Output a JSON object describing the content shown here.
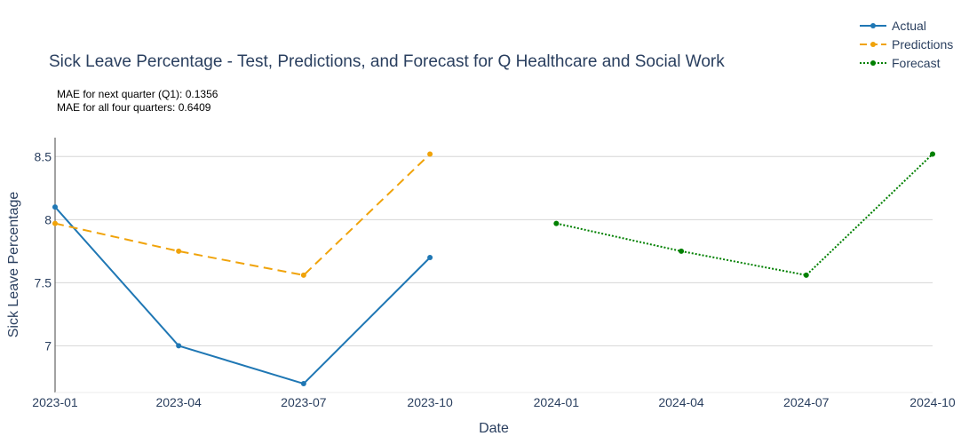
{
  "chart_data": {
    "type": "line",
    "title": "Sick Leave Percentage - Test, Predictions, and Forecast for Q Healthcare and Social Work",
    "annotations": [
      "MAE for next quarter (Q1): 0.1356",
      "MAE for all four quarters: 0.6409"
    ],
    "xlabel": "Date",
    "ylabel": "Sick Leave Percentage",
    "x_ticks": [
      "2023-01",
      "2023-04",
      "2023-07",
      "2023-10",
      "2024-01",
      "2024-04",
      "2024-07",
      "2024-10"
    ],
    "y_ticks": [
      7,
      7.5,
      8,
      8.5
    ],
    "y_tick_labels": [
      "7",
      "7.5",
      "8",
      "8.5"
    ],
    "xlim": [
      "2023-01-01",
      "2024-10-01"
    ],
    "ylim": [
      6.63,
      8.65
    ],
    "grid": true,
    "legend_position": "top-right",
    "series": [
      {
        "name": "Actual",
        "color": "#1f77b4",
        "dash": "solid",
        "x": [
          "2023-01-01",
          "2023-04-01",
          "2023-07-01",
          "2023-10-01"
        ],
        "y": [
          8.1,
          7.0,
          6.7,
          7.7
        ]
      },
      {
        "name": "Predictions",
        "color": "#f0a30a",
        "dash": "dash",
        "x": [
          "2023-01-01",
          "2023-04-01",
          "2023-07-01",
          "2023-10-01"
        ],
        "y": [
          7.97,
          7.75,
          7.56,
          8.52
        ]
      },
      {
        "name": "Forecast",
        "color": "#008000",
        "dash": "dot",
        "x": [
          "2024-01-01",
          "2024-04-01",
          "2024-07-01",
          "2024-10-01"
        ],
        "y": [
          7.97,
          7.75,
          7.56,
          8.52
        ]
      }
    ]
  }
}
